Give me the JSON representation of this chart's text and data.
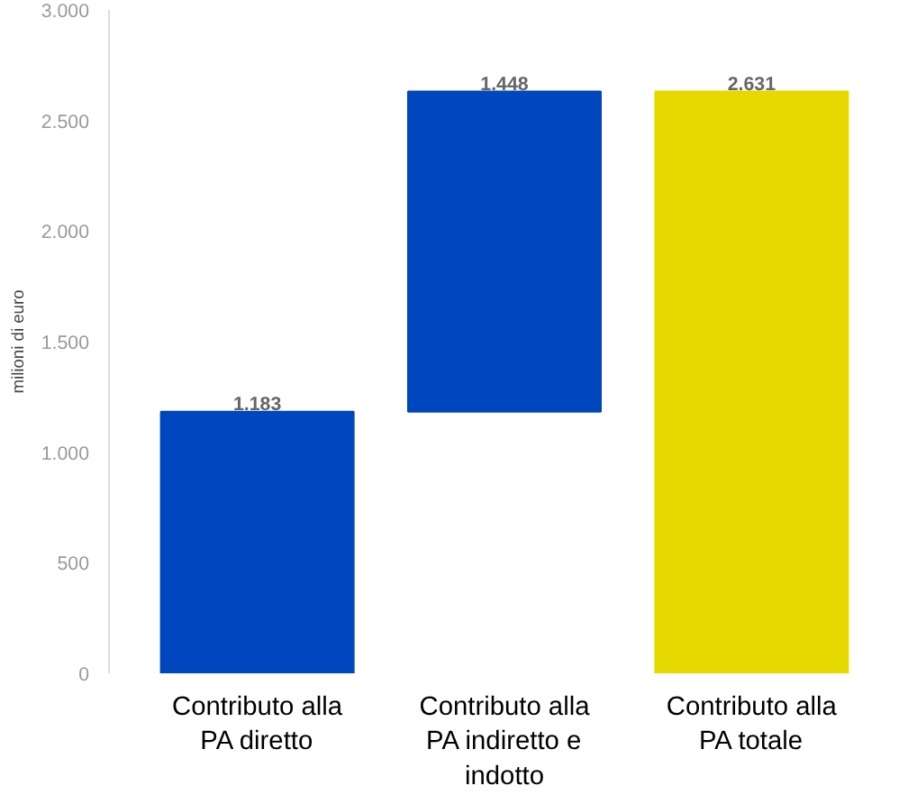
{
  "chart_data": {
    "type": "bar",
    "ylabel": "milioni di euro",
    "categories": [
      "Contributo alla PA diretto",
      "Contributo alla PA indiretto e indotto",
      "Contributo alla PA totale"
    ],
    "values": [
      1183,
      1448,
      2631
    ],
    "base": [
      0,
      1183,
      0
    ],
    "colors": [
      "#0046be",
      "#0046be",
      "#e6d900"
    ],
    "value_labels": [
      "1.183",
      "1.448",
      "2.631"
    ],
    "ylim": [
      0,
      3000
    ],
    "yticks": [
      {
        "value": 0,
        "label": "0"
      },
      {
        "value": 500,
        "label": "500"
      },
      {
        "value": 1000,
        "label": "1.000"
      },
      {
        "value": 1500,
        "label": "1.500"
      },
      {
        "value": 2000,
        "label": "2.000"
      },
      {
        "value": 2500,
        "label": "2.500"
      },
      {
        "value": 3000,
        "label": "3.000"
      }
    ],
    "grid": false
  }
}
